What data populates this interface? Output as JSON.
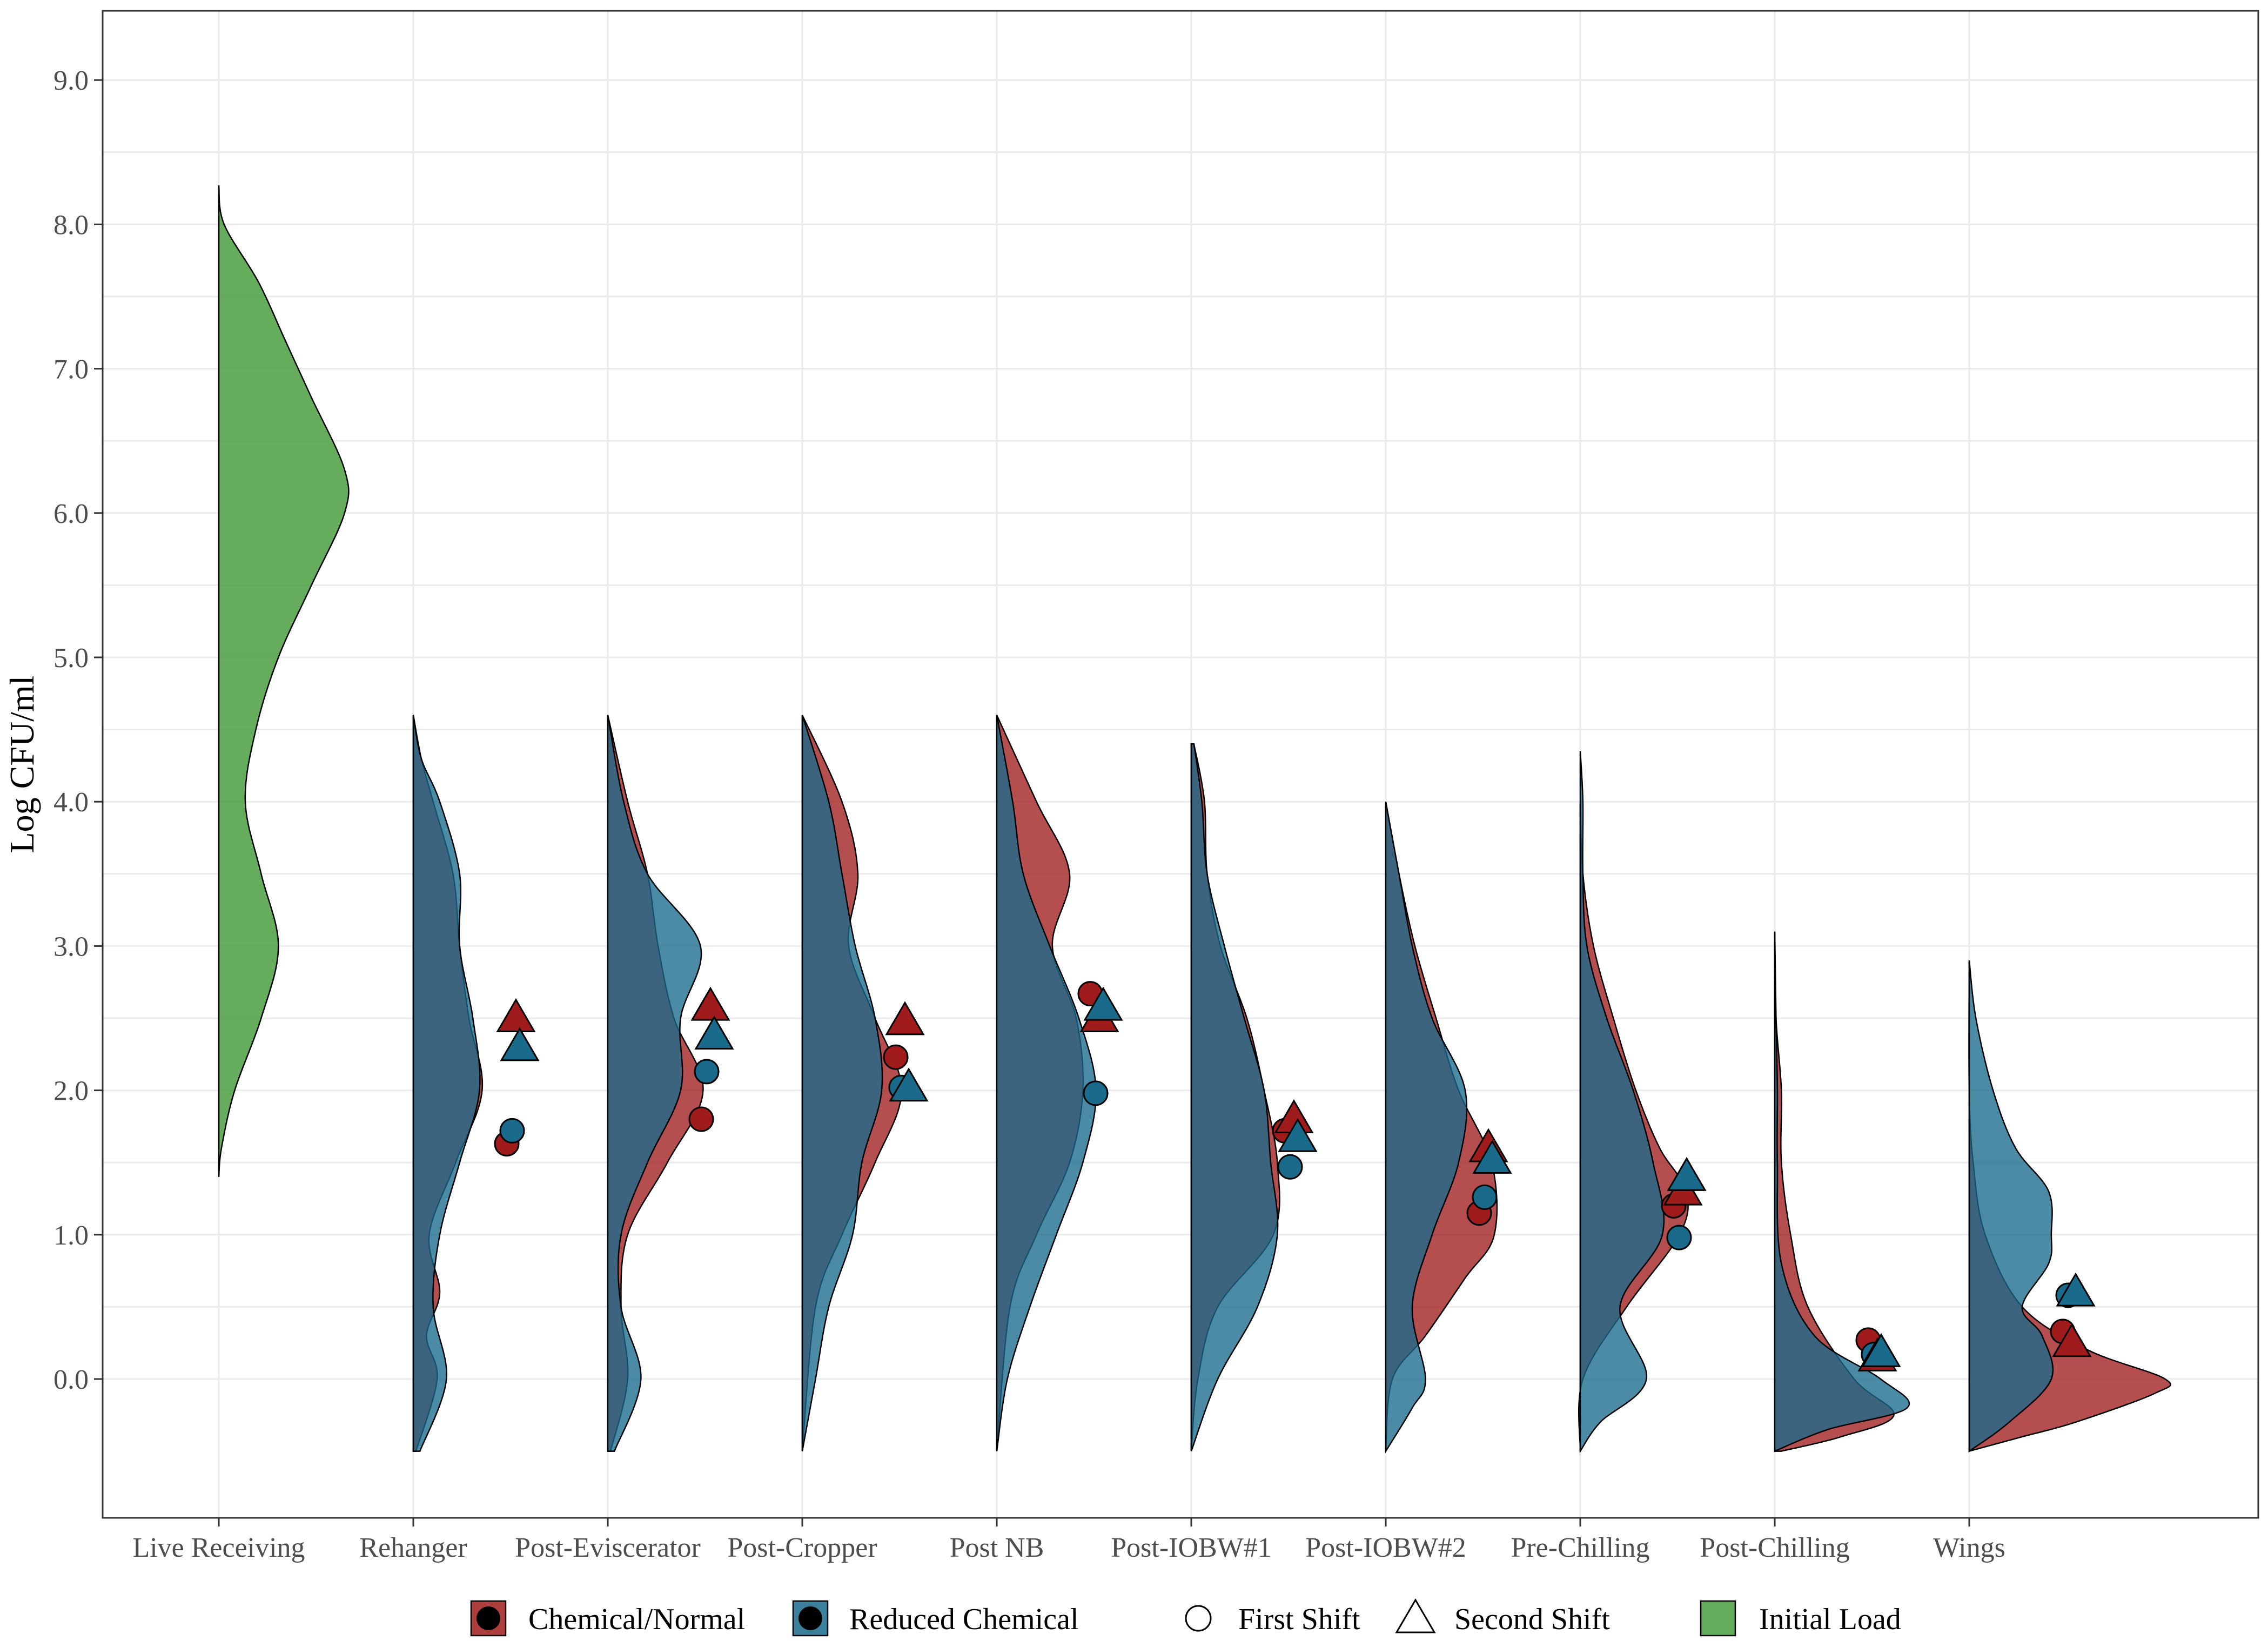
{
  "chart_data": {
    "type": "raincloud",
    "title": "",
    "xlabel": "",
    "ylabel": "Log CFU/ml",
    "ylim": [
      -0.95,
      9.5
    ],
    "yticks": [
      0.0,
      1.0,
      2.0,
      3.0,
      4.0,
      5.0,
      6.0,
      7.0,
      8.0,
      9.0
    ],
    "ytick_labels": [
      "0.0",
      "1.0",
      "2.0",
      "3.0",
      "4.0",
      "5.0",
      "6.0",
      "7.0",
      "8.0",
      "9.0"
    ],
    "categories": [
      "Live Receiving",
      "Rehanger",
      "Post-Eviscerator",
      "Post-Cropper",
      "Post NB",
      "Post-IOBW#1",
      "Post-IOBW#2",
      "Pre-Chilling",
      "Post-Chilling",
      "Wings"
    ],
    "colors": {
      "chemical": "#a01c1c",
      "reduced": "#1a6a8c",
      "initial": "#4a9e3f",
      "overlap": "#2d4f6a"
    },
    "initial_load": {
      "category": "Live Receiving",
      "density": [
        [
          1.4,
          0
        ],
        [
          1.6,
          0.02
        ],
        [
          2.0,
          0.12
        ],
        [
          2.5,
          0.32
        ],
        [
          3.0,
          0.45
        ],
        [
          3.5,
          0.32
        ],
        [
          4.0,
          0.2
        ],
        [
          4.5,
          0.28
        ],
        [
          5.0,
          0.45
        ],
        [
          5.5,
          0.7
        ],
        [
          6.0,
          0.95
        ],
        [
          6.3,
          0.95
        ],
        [
          6.8,
          0.7
        ],
        [
          7.2,
          0.5
        ],
        [
          7.6,
          0.3
        ],
        [
          8.0,
          0.04
        ],
        [
          8.27,
          0
        ]
      ]
    },
    "density_chemical": [
      [
        [
          -0.5,
          0.02
        ],
        [
          0,
          0.18
        ],
        [
          0.3,
          0.1
        ],
        [
          0.6,
          0.2
        ],
        [
          1.0,
          0.12
        ],
        [
          1.5,
          0.32
        ],
        [
          2.0,
          0.52
        ],
        [
          2.5,
          0.42
        ],
        [
          3.0,
          0.35
        ],
        [
          3.5,
          0.3
        ],
        [
          4.0,
          0.15
        ],
        [
          4.3,
          0.06
        ],
        [
          4.6,
          0
        ]
      ],
      [
        [
          -0.5,
          0.02
        ],
        [
          0,
          0.15
        ],
        [
          0.5,
          0.1
        ],
        [
          1.0,
          0.15
        ],
        [
          1.5,
          0.45
        ],
        [
          2.0,
          0.72
        ],
        [
          2.5,
          0.5
        ],
        [
          3.0,
          0.38
        ],
        [
          3.5,
          0.3
        ],
        [
          4.0,
          0.15
        ],
        [
          4.6,
          0
        ]
      ],
      [
        [
          -0.5,
          0
        ],
        [
          0.5,
          0.1
        ],
        [
          1.0,
          0.3
        ],
        [
          1.5,
          0.55
        ],
        [
          2.0,
          0.75
        ],
        [
          2.5,
          0.55
        ],
        [
          3.0,
          0.35
        ],
        [
          3.5,
          0.42
        ],
        [
          4.0,
          0.3
        ],
        [
          4.6,
          0
        ]
      ],
      [
        [
          -0.5,
          0
        ],
        [
          0.5,
          0.1
        ],
        [
          1.0,
          0.3
        ],
        [
          1.5,
          0.55
        ],
        [
          2.0,
          0.65
        ],
        [
          2.5,
          0.6
        ],
        [
          3.0,
          0.42
        ],
        [
          3.5,
          0.55
        ],
        [
          4.0,
          0.3
        ],
        [
          4.6,
          0
        ]
      ],
      [
        [
          -0.5,
          0
        ],
        [
          0,
          0.05
        ],
        [
          0.5,
          0.2
        ],
        [
          1.0,
          0.62
        ],
        [
          1.5,
          0.65
        ],
        [
          2.0,
          0.55
        ],
        [
          2.5,
          0.42
        ],
        [
          3.0,
          0.22
        ],
        [
          3.5,
          0.12
        ],
        [
          4.0,
          0.1
        ],
        [
          4.4,
          0.02
        ]
      ],
      [
        [
          -0.5,
          0
        ],
        [
          0,
          0.05
        ],
        [
          0.3,
          0.3
        ],
        [
          0.7,
          0.6
        ],
        [
          1.0,
          0.82
        ],
        [
          1.5,
          0.8
        ],
        [
          2.0,
          0.55
        ],
        [
          2.5,
          0.38
        ],
        [
          3.0,
          0.22
        ],
        [
          3.5,
          0.1
        ],
        [
          4.0,
          0
        ]
      ],
      [
        [
          -0.5,
          0
        ],
        [
          0,
          0.02
        ],
        [
          0.5,
          0.35
        ],
        [
          1.0,
          0.75
        ],
        [
          1.3,
          0.8
        ],
        [
          1.6,
          0.6
        ],
        [
          2.0,
          0.42
        ],
        [
          2.5,
          0.25
        ],
        [
          3.0,
          0.1
        ],
        [
          3.5,
          0.02
        ],
        [
          4.0,
          0
        ]
      ],
      [
        [
          -0.5,
          0.05
        ],
        [
          -0.4,
          0.5
        ],
        [
          -0.25,
          0.9
        ],
        [
          0,
          0.6
        ],
        [
          0.5,
          0.25
        ],
        [
          1.0,
          0.12
        ],
        [
          1.5,
          0.05
        ],
        [
          2.0,
          0.05
        ],
        [
          2.5,
          0.01
        ],
        [
          3.1,
          0
        ]
      ],
      [
        [
          -0.5,
          0
        ],
        [
          -0.4,
          0.4
        ],
        [
          -0.3,
          0.8
        ],
        [
          -0.1,
          1.4
        ],
        [
          0,
          1.48
        ],
        [
          0.2,
          0.9
        ],
        [
          0.5,
          0.4
        ],
        [
          1.0,
          0.12
        ],
        [
          1.5,
          0.03
        ],
        [
          2.0,
          0
        ],
        [
          2.9,
          0
        ]
      ]
    ],
    "density_reduced": [
      [
        [
          -0.5,
          0.05
        ],
        [
          0,
          0.25
        ],
        [
          0.5,
          0.15
        ],
        [
          1.0,
          0.2
        ],
        [
          1.5,
          0.35
        ],
        [
          2.0,
          0.5
        ],
        [
          2.5,
          0.45
        ],
        [
          3.0,
          0.35
        ],
        [
          3.5,
          0.35
        ],
        [
          4.0,
          0.2
        ],
        [
          4.3,
          0.06
        ],
        [
          4.6,
          0
        ]
      ],
      [
        [
          -0.5,
          0.05
        ],
        [
          0,
          0.25
        ],
        [
          0.5,
          0.1
        ],
        [
          1.0,
          0.1
        ],
        [
          1.5,
          0.3
        ],
        [
          2.0,
          0.55
        ],
        [
          2.5,
          0.55
        ],
        [
          3.0,
          0.7
        ],
        [
          3.5,
          0.3
        ],
        [
          4.0,
          0.12
        ],
        [
          4.6,
          0
        ]
      ],
      [
        [
          -0.5,
          0
        ],
        [
          0,
          0.1
        ],
        [
          0.5,
          0.2
        ],
        [
          1.0,
          0.38
        ],
        [
          1.5,
          0.45
        ],
        [
          2.0,
          0.6
        ],
        [
          2.5,
          0.55
        ],
        [
          3.0,
          0.4
        ],
        [
          3.5,
          0.3
        ],
        [
          4.0,
          0.2
        ],
        [
          4.6,
          0
        ]
      ],
      [
        [
          -0.5,
          0
        ],
        [
          0,
          0.08
        ],
        [
          0.5,
          0.25
        ],
        [
          1.0,
          0.45
        ],
        [
          1.5,
          0.65
        ],
        [
          2.0,
          0.75
        ],
        [
          2.5,
          0.62
        ],
        [
          3.0,
          0.4
        ],
        [
          3.5,
          0.2
        ],
        [
          4.0,
          0.12
        ],
        [
          4.6,
          0
        ]
      ],
      [
        [
          -0.5,
          0
        ],
        [
          0,
          0.2
        ],
        [
          0.5,
          0.5
        ],
        [
          1.0,
          0.65
        ],
        [
          1.5,
          0.6
        ],
        [
          2.0,
          0.55
        ],
        [
          2.5,
          0.4
        ],
        [
          3.0,
          0.25
        ],
        [
          3.5,
          0.12
        ],
        [
          4.0,
          0.08
        ],
        [
          4.4,
          0.02
        ]
      ],
      [
        [
          -0.5,
          0
        ],
        [
          -0.2,
          0.2
        ],
        [
          0,
          0.3
        ],
        [
          0.5,
          0.2
        ],
        [
          1.0,
          0.35
        ],
        [
          1.5,
          0.55
        ],
        [
          2.0,
          0.6
        ],
        [
          2.5,
          0.35
        ],
        [
          3.0,
          0.2
        ],
        [
          3.5,
          0.1
        ],
        [
          4.0,
          0
        ]
      ],
      [
        [
          -0.5,
          0
        ],
        [
          -0.3,
          0.15
        ],
        [
          0,
          0.5
        ],
        [
          0.5,
          0.3
        ],
        [
          1.0,
          0.62
        ],
        [
          1.5,
          0.55
        ],
        [
          2.0,
          0.4
        ],
        [
          2.5,
          0.2
        ],
        [
          3.0,
          0.05
        ],
        [
          3.5,
          0.02
        ],
        [
          4.0,
          0.02
        ],
        [
          4.35,
          0
        ]
      ],
      [
        [
          -0.5,
          0
        ],
        [
          -0.35,
          0.4
        ],
        [
          -0.2,
          1.0
        ],
        [
          0,
          0.8
        ],
        [
          0.3,
          0.3
        ],
        [
          0.8,
          0.05
        ],
        [
          1.5,
          0.02
        ],
        [
          2.0,
          0.02
        ],
        [
          2.5,
          0.01
        ],
        [
          3.1,
          0
        ]
      ],
      [
        [
          -0.5,
          0
        ],
        [
          -0.3,
          0.3
        ],
        [
          0,
          0.62
        ],
        [
          0.3,
          0.55
        ],
        [
          0.5,
          0.4
        ],
        [
          0.8,
          0.6
        ],
        [
          1.0,
          0.62
        ],
        [
          1.3,
          0.6
        ],
        [
          1.6,
          0.35
        ],
        [
          2.0,
          0.18
        ],
        [
          2.5,
          0.05
        ],
        [
          2.9,
          0
        ]
      ]
    ],
    "points": [
      {
        "category": "Rehanger",
        "chemical_first": 1.63,
        "chemical_second": 2.5,
        "reduced_first": 1.72,
        "reduced_second": 2.3
      },
      {
        "category": "Post-Eviscerator",
        "chemical_first": 1.8,
        "chemical_second": 2.58,
        "reduced_first": 2.13,
        "reduced_second": 2.38
      },
      {
        "category": "Post-Cropper",
        "chemical_first": 2.23,
        "chemical_second": 2.48,
        "reduced_first": 2.02,
        "reduced_second": 2.02
      },
      {
        "category": "Post NB",
        "chemical_first": 2.67,
        "chemical_second": 2.5,
        "reduced_first": 1.98,
        "reduced_second": 2.58
      },
      {
        "category": "Post-IOBW#1",
        "chemical_first": 1.72,
        "chemical_second": 1.8,
        "reduced_first": 1.47,
        "reduced_second": 1.67
      },
      {
        "category": "Post-IOBW#2",
        "chemical_first": 1.15,
        "chemical_second": 1.6,
        "reduced_first": 1.26,
        "reduced_second": 1.52
      },
      {
        "category": "Pre-Chilling",
        "chemical_first": 1.2,
        "chemical_second": 1.3,
        "reduced_first": 0.98,
        "reduced_second": 1.4
      },
      {
        "category": "Post-Chilling",
        "chemical_first": 0.27,
        "chemical_second": 0.15,
        "reduced_first": 0.17,
        "reduced_second": 0.18
      },
      {
        "category": "Wings",
        "chemical_first": 0.33,
        "chemical_second": 0.25,
        "reduced_first": 0.58,
        "reduced_second": 0.6
      }
    ],
    "legend": {
      "position": "bottom",
      "treatment": [
        "Chemical/Normal",
        "Reduced Chemical"
      ],
      "shift": [
        "First Shift",
        "Second Shift"
      ],
      "load": [
        "Initial Load"
      ]
    }
  }
}
